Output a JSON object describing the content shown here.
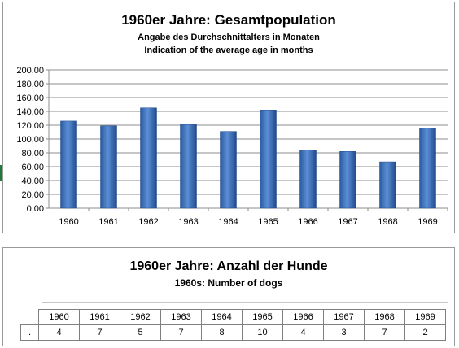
{
  "chart_data": {
    "type": "bar",
    "title": "1960er Jahre: Gesamtpopulation",
    "subtitle_de": "Angabe des Durchschnittalters in Monaten",
    "subtitle_en": "Indication of the average age in months",
    "categories": [
      "1960",
      "1961",
      "1962",
      "1963",
      "1964",
      "1965",
      "1966",
      "1967",
      "1968",
      "1969"
    ],
    "values": [
      126,
      119,
      145,
      121,
      111,
      142,
      84,
      82,
      67,
      116
    ],
    "ylim": [
      0,
      200
    ],
    "ytick_labels": [
      "0,00",
      "20,00",
      "40,00",
      "60,00",
      "80,00",
      "100,00",
      "120,00",
      "140,00",
      "160,00",
      "180,00",
      "200,00"
    ],
    "grid": true,
    "bar_color": "#3a6fb8"
  },
  "table": {
    "title": "1960er Jahre: Anzahl der Hunde",
    "subtitle": "1960s: Number of dogs",
    "row_label": ".",
    "years": [
      "1960",
      "1961",
      "1962",
      "1963",
      "1964",
      "1965",
      "1966",
      "1967",
      "1968",
      "1969"
    ],
    "counts": [
      "4",
      "7",
      "5",
      "7",
      "8",
      "10",
      "4",
      "3",
      "7",
      "2"
    ]
  },
  "accent": "#1f7a3a"
}
